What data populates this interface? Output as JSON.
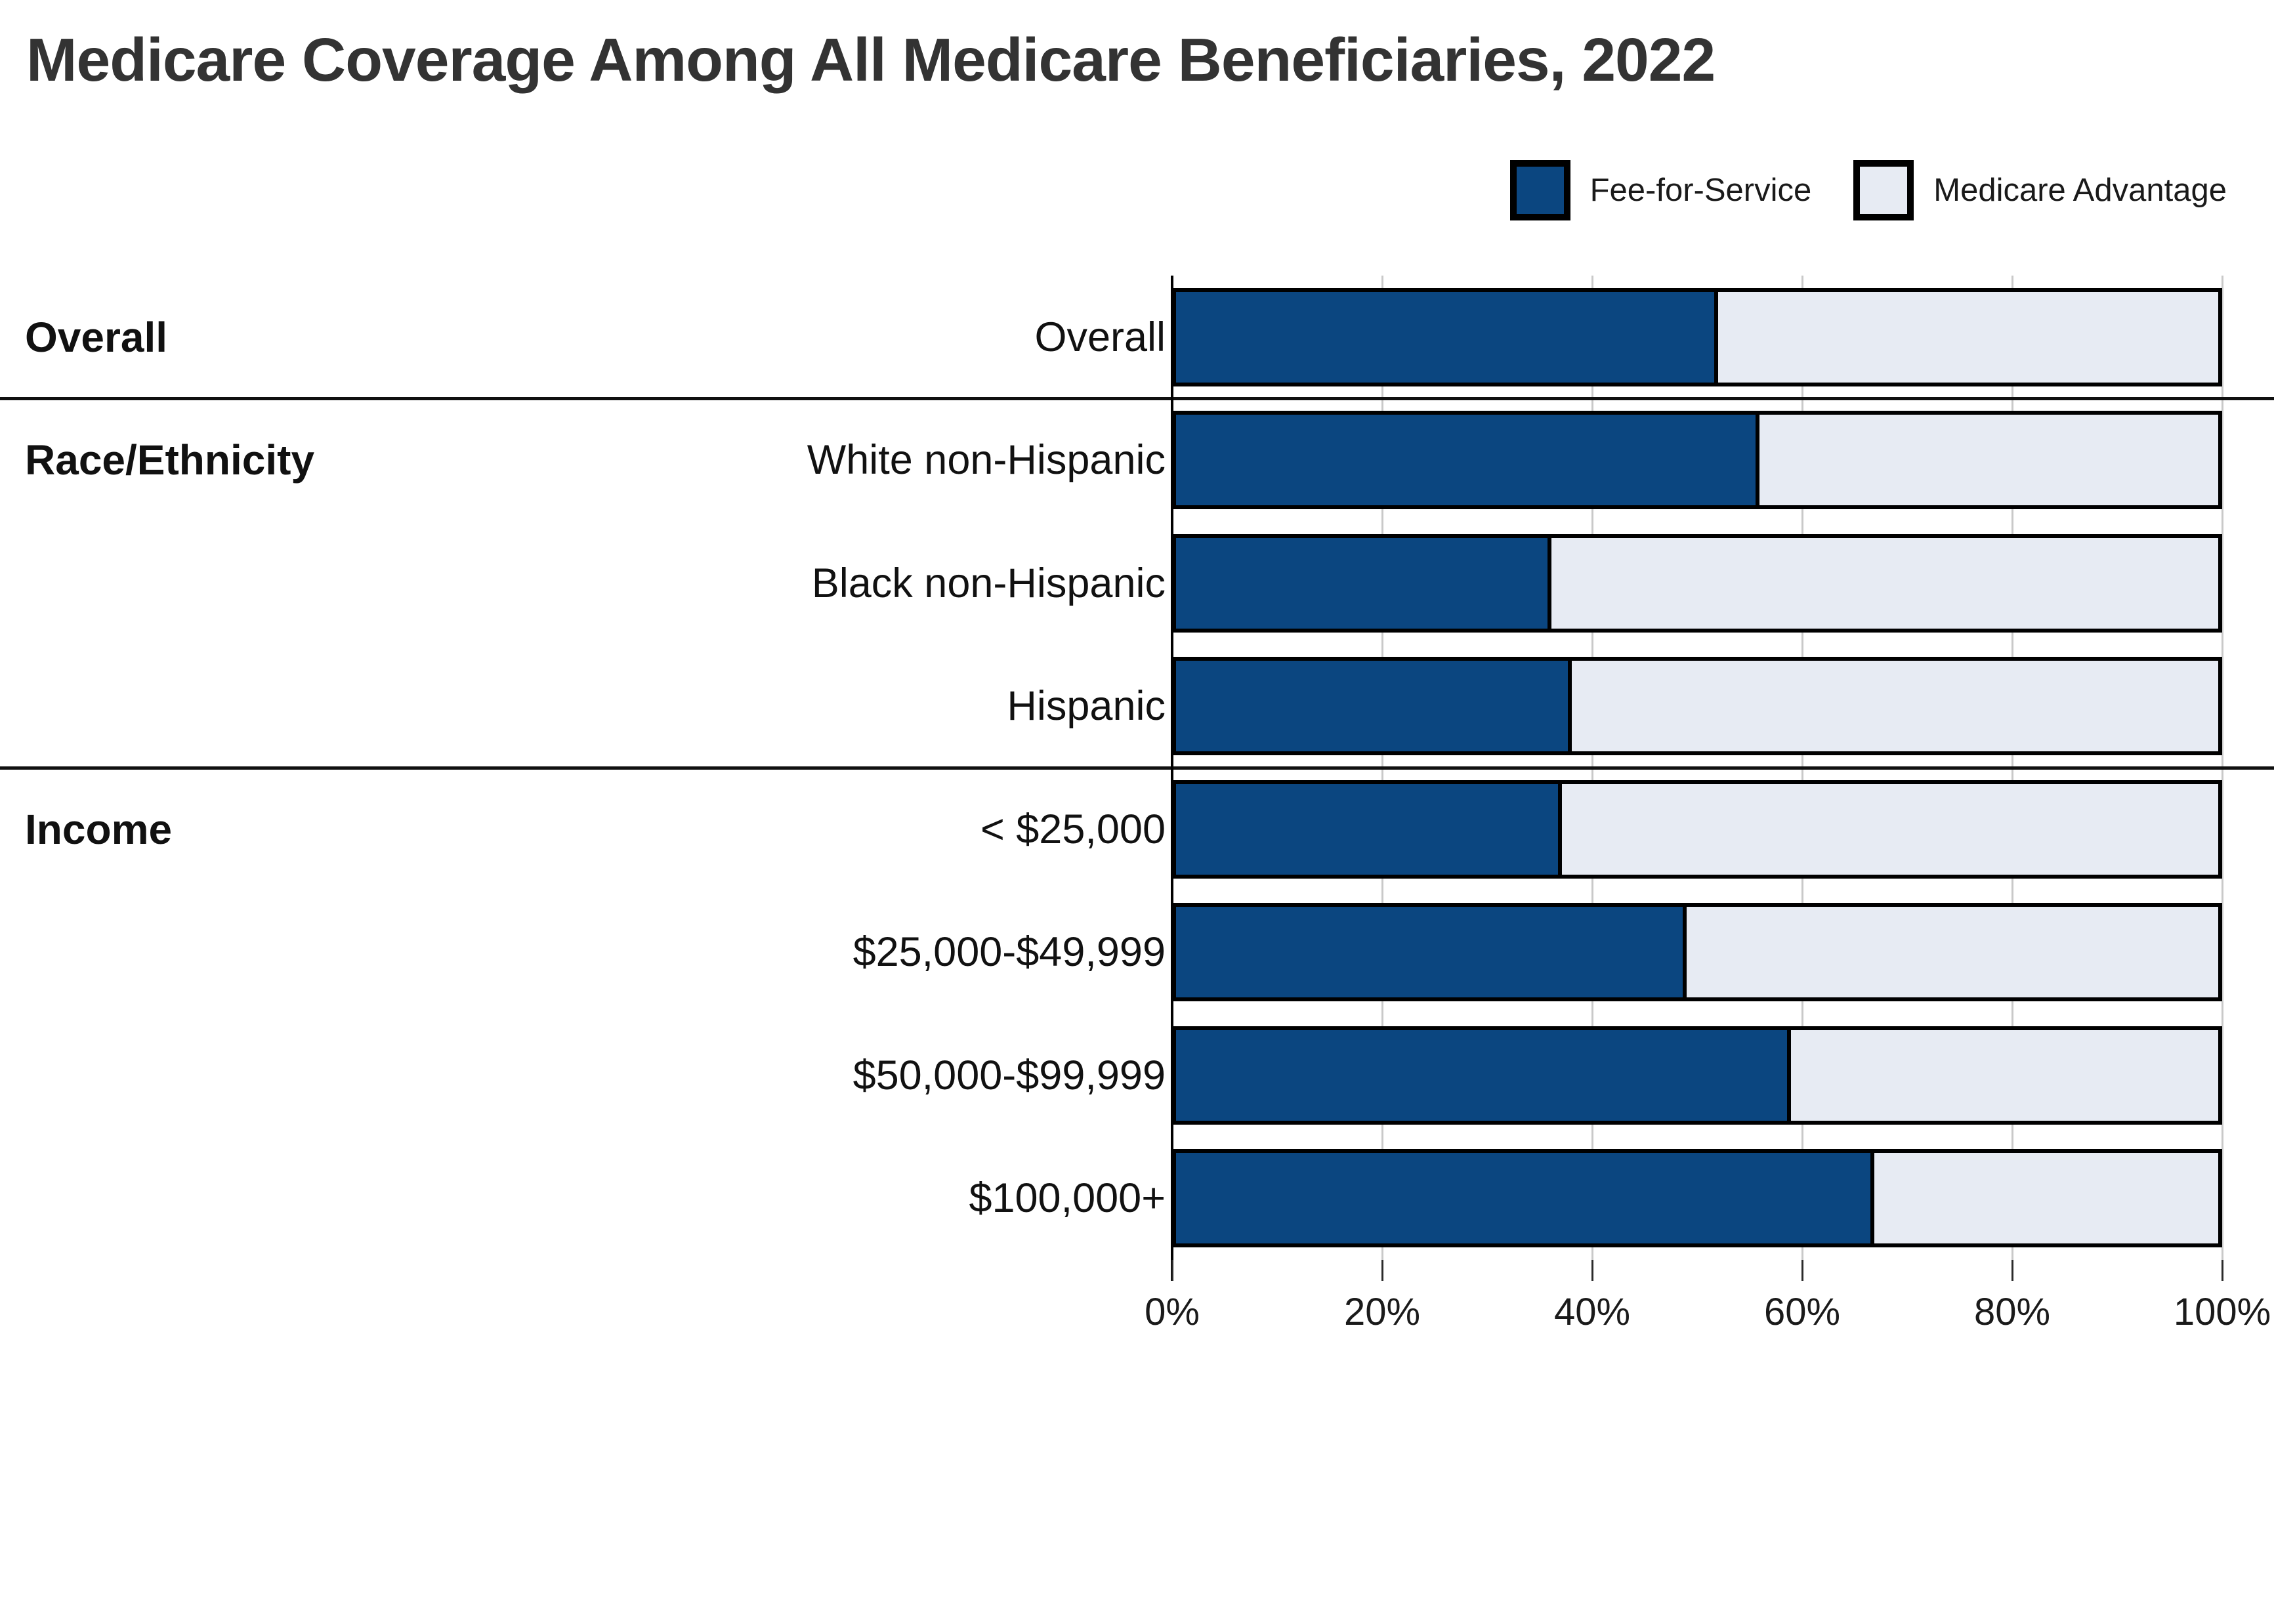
{
  "page": {
    "title": "Medicare Coverage Among All Medicare Beneficiaries, 2022"
  },
  "chart_data": {
    "type": "bar",
    "variant": "horizontal-stacked-100percent",
    "title": "Medicare Coverage Among All Medicare Beneficiaries, 2022",
    "unit": "%",
    "xlim": [
      0,
      100
    ],
    "x_ticks": [
      "0%",
      "20%",
      "40%",
      "60%",
      "80%",
      "100%"
    ],
    "grid": true,
    "legend_position": "top-right",
    "series": [
      {
        "name": "Fee-for-Service",
        "color": "#0B4680"
      },
      {
        "name": "Medicare Advantage",
        "color": "#E7EBF3"
      }
    ],
    "groups": [
      {
        "group": "Overall",
        "rows": [
          {
            "label": "Overall",
            "fee_for_service": 52,
            "medicare_advantage": 48
          }
        ]
      },
      {
        "group": "Race/Ethnicity",
        "rows": [
          {
            "label": "White non-Hispanic",
            "fee_for_service": 56,
            "medicare_advantage": 44
          },
          {
            "label": "Black non-Hispanic",
            "fee_for_service": 36,
            "medicare_advantage": 64
          },
          {
            "label": "Hispanic",
            "fee_for_service": 38,
            "medicare_advantage": 62
          }
        ]
      },
      {
        "group": "Income",
        "rows": [
          {
            "label": "< $25,000",
            "fee_for_service": 37,
            "medicare_advantage": 63
          },
          {
            "label": "$25,000-$49,999",
            "fee_for_service": 49,
            "medicare_advantage": 51
          },
          {
            "label": "$50,000-$99,999",
            "fee_for_service": 59,
            "medicare_advantage": 41
          },
          {
            "label": "$100,000+",
            "fee_for_service": 67,
            "medicare_advantage": 33
          }
        ]
      }
    ],
    "categories": [
      "Overall",
      "White non-Hispanic",
      "Black non-Hispanic",
      "Hispanic",
      "< $25,000",
      "$25,000-$49,999",
      "$50,000-$99,999",
      "$100,000+"
    ],
    "series_values": [
      {
        "name": "Fee-for-Service",
        "values": [
          52,
          56,
          36,
          38,
          37,
          49,
          59,
          67
        ]
      },
      {
        "name": "Medicare Advantage",
        "values": [
          48,
          44,
          64,
          62,
          63,
          51,
          41,
          33
        ]
      }
    ]
  }
}
